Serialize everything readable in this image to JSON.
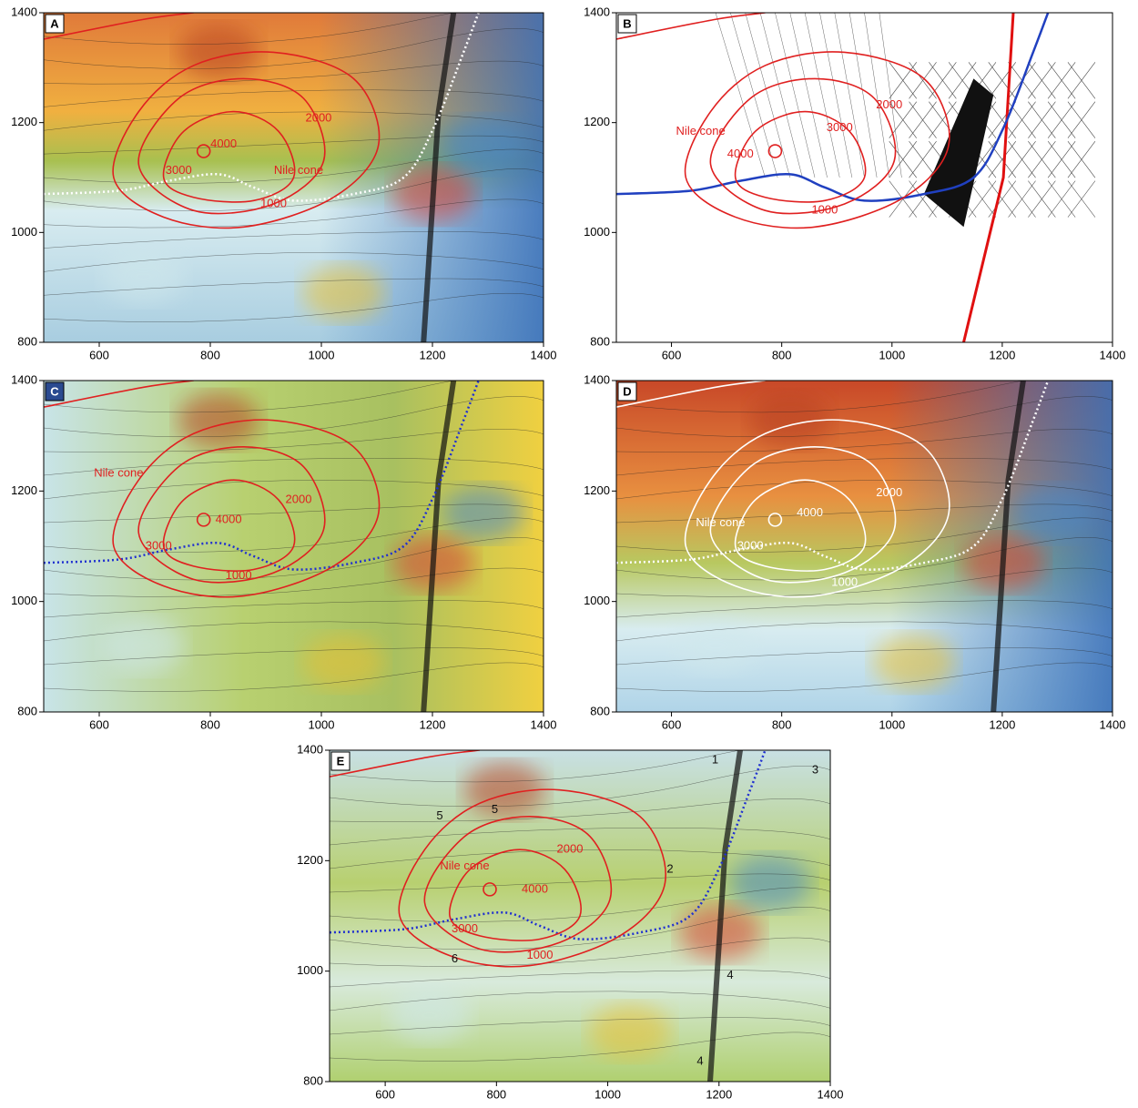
{
  "panels": [
    {
      "label": "A",
      "xticks": [
        600,
        800,
        1000,
        1200,
        1400
      ],
      "yticks": [
        800,
        1000,
        1200,
        1400
      ],
      "annotations": [
        "Nile cone",
        "4000",
        "3000",
        "2000",
        "1000"
      ]
    },
    {
      "label": "B",
      "xticks": [
        600,
        800,
        1000,
        1200,
        1400
      ],
      "yticks": [
        800,
        1000,
        1200,
        1400
      ],
      "annotations": [
        "Nile cone",
        "4000",
        "3000",
        "2000",
        "1000"
      ]
    },
    {
      "label": "C",
      "xticks": [
        600,
        800,
        1000,
        1200,
        1400
      ],
      "yticks": [
        800,
        1000,
        1200,
        1400
      ],
      "annotations": [
        "Nile cone",
        "4000",
        "3000",
        "2000",
        "1000"
      ]
    },
    {
      "label": "D",
      "xticks": [
        600,
        800,
        1000,
        1200,
        1400
      ],
      "yticks": [
        800,
        1000,
        1200,
        1400
      ],
      "annotations": [
        "Nile cone",
        "4000",
        "3000",
        "2000",
        "1000"
      ]
    },
    {
      "label": "E",
      "xticks": [
        600,
        800,
        1000,
        1200,
        1400
      ],
      "yticks": [
        800,
        1000,
        1200,
        1400
      ],
      "annotations": [
        "Nile cone",
        "4000",
        "3000",
        "2000",
        "1000",
        "1",
        "2",
        "3",
        "4",
        "4",
        "5",
        "5",
        "6"
      ]
    }
  ]
}
